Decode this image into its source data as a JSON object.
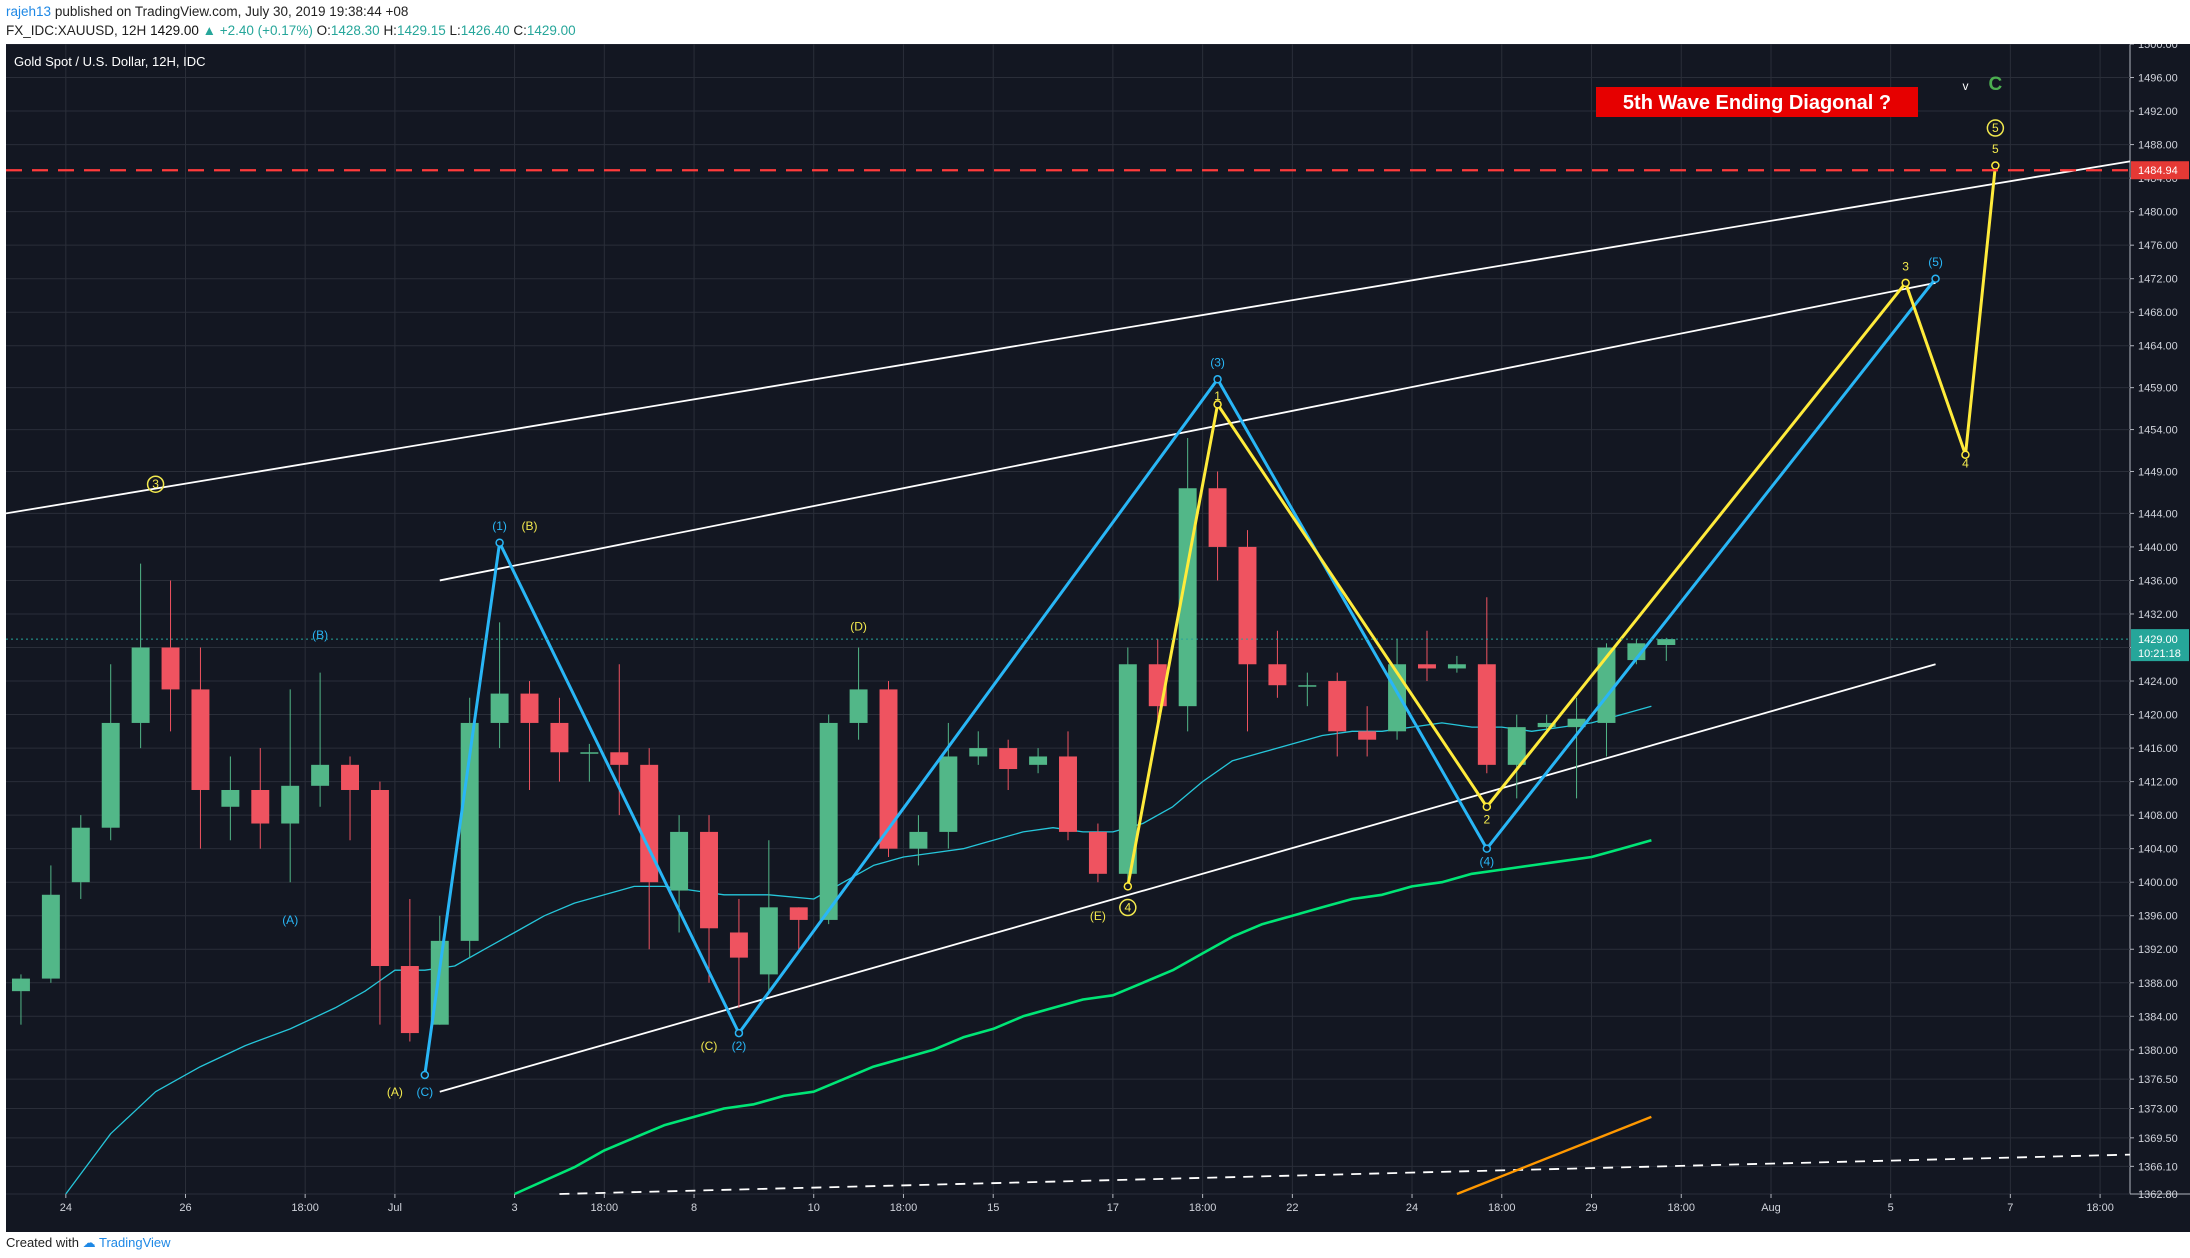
{
  "header": {
    "user": "rajeh13",
    "published": "published on TradingView.com, July 30, 2019 19:38:44 +08",
    "symbol_line": "FX_IDC:XAUUSD, 12H",
    "last": "1429.00",
    "change": "▲ +2.40 (+0.17%)",
    "o_label": "O:",
    "o": "1428.30",
    "h_label": "H:",
    "h": "1429.15",
    "l_label": "L:",
    "l": "1426.40",
    "c_label": "C:",
    "c": "1429.00"
  },
  "footer": {
    "created": "Created with",
    "brand": "TradingView"
  },
  "chart_data": {
    "type": "candlestick",
    "title": "Gold Spot / U.S. Dollar, 12H, IDC",
    "annotation": "5th Wave Ending Diagonal ?",
    "ylim": [
      1362.8,
      1500.0
    ],
    "y_ticks": [
      "1500.00",
      "1496.00",
      "1492.00",
      "1488.00",
      "1484.00",
      "1480.00",
      "1476.00",
      "1472.00",
      "1468.00",
      "1464.00",
      "1459.00",
      "1454.00",
      "1449.00",
      "1444.00",
      "1440.00",
      "1436.00",
      "1432.00",
      "1428.00",
      "1424.00",
      "1420.00",
      "1416.00",
      "1412.00",
      "1408.00",
      "1404.00",
      "1400.00",
      "1396.00",
      "1392.00",
      "1388.00",
      "1384.00",
      "1380.00",
      "1376.50",
      "1373.00",
      "1369.50",
      "1366.10",
      "1362.80"
    ],
    "x_ticks": [
      {
        "i": 1.5,
        "label": "24"
      },
      {
        "i": 5.5,
        "label": "26"
      },
      {
        "i": 9.5,
        "label": "18:00"
      },
      {
        "i": 12.5,
        "label": "Jul"
      },
      {
        "i": 16.5,
        "label": "3"
      },
      {
        "i": 19.5,
        "label": "18:00"
      },
      {
        "i": 22.5,
        "label": "8"
      },
      {
        "i": 26.5,
        "label": "10"
      },
      {
        "i": 29.5,
        "label": "18:00"
      },
      {
        "i": 32.5,
        "label": "15"
      },
      {
        "i": 36.5,
        "label": "17"
      },
      {
        "i": 39.5,
        "label": "18:00"
      },
      {
        "i": 42.5,
        "label": "22"
      },
      {
        "i": 46.5,
        "label": "24"
      },
      {
        "i": 49.5,
        "label": "18:00"
      },
      {
        "i": 52.5,
        "label": "29"
      },
      {
        "i": 55.5,
        "label": "18:00"
      },
      {
        "i": 58.5,
        "label": "Aug"
      },
      {
        "i": 62.5,
        "label": "5"
      },
      {
        "i": 66.5,
        "label": "7"
      },
      {
        "i": 69.5,
        "label": "18:00"
      }
    ],
    "candles": [
      [
        1387,
        1388.5,
        1383,
        1389
      ],
      [
        1388.5,
        1398.5,
        1388,
        1402
      ],
      [
        1400,
        1406.5,
        1398,
        1408
      ],
      [
        1406.5,
        1419,
        1405,
        1426
      ],
      [
        1419,
        1428,
        1416,
        1438
      ],
      [
        1428,
        1423,
        1418,
        1436
      ],
      [
        1423,
        1411,
        1404,
        1428
      ],
      [
        1409,
        1411,
        1405,
        1415
      ],
      [
        1411,
        1407,
        1404,
        1416
      ],
      [
        1407,
        1411.5,
        1400,
        1423
      ],
      [
        1411.5,
        1414,
        1409,
        1425
      ],
      [
        1414,
        1411,
        1405,
        1415
      ],
      [
        1411,
        1390,
        1383,
        1412
      ],
      [
        1390,
        1382,
        1381,
        1398
      ],
      [
        1383,
        1393,
        1383,
        1396
      ],
      [
        1393,
        1419,
        1391,
        1422
      ],
      [
        1419,
        1422.5,
        1416,
        1431
      ],
      [
        1422.5,
        1419,
        1411,
        1424
      ],
      [
        1419,
        1415.5,
        1412,
        1422
      ],
      [
        1415.5,
        1415.5,
        1412,
        1416.5
      ],
      [
        1415.5,
        1414,
        1408,
        1426
      ],
      [
        1414,
        1400,
        1392,
        1416
      ],
      [
        1399,
        1406,
        1394,
        1408
      ],
      [
        1406,
        1394.5,
        1388,
        1408
      ],
      [
        1394,
        1391,
        1385,
        1398
      ],
      [
        1389,
        1397,
        1387,
        1405
      ],
      [
        1397,
        1395.5,
        1392,
        1397
      ],
      [
        1395.5,
        1419,
        1395,
        1420
      ],
      [
        1419,
        1423,
        1417,
        1428
      ],
      [
        1423,
        1404,
        1403,
        1424
      ],
      [
        1404,
        1406,
        1402,
        1408
      ],
      [
        1406,
        1415,
        1404,
        1419
      ],
      [
        1415,
        1416,
        1414,
        1418
      ],
      [
        1416,
        1413.5,
        1411,
        1417
      ],
      [
        1414,
        1415,
        1413,
        1416
      ],
      [
        1415,
        1406,
        1405,
        1418
      ],
      [
        1406,
        1401,
        1400,
        1407
      ],
      [
        1401,
        1426,
        1400,
        1428
      ],
      [
        1426,
        1421,
        1419,
        1429
      ],
      [
        1421,
        1447,
        1418,
        1453
      ],
      [
        1447,
        1440,
        1436,
        1449
      ],
      [
        1440,
        1426,
        1418,
        1442
      ],
      [
        1426,
        1423.5,
        1422,
        1430
      ],
      [
        1423.5,
        1423.5,
        1421,
        1425
      ],
      [
        1424,
        1418,
        1415,
        1425
      ],
      [
        1418,
        1417,
        1415,
        1421
      ],
      [
        1418,
        1426,
        1417,
        1429
      ],
      [
        1426,
        1425.5,
        1424,
        1430
      ],
      [
        1425.5,
        1426,
        1425,
        1427
      ],
      [
        1426,
        1414,
        1413,
        1434
      ],
      [
        1414,
        1418.5,
        1410,
        1420
      ],
      [
        1418.5,
        1419,
        1418,
        1420
      ],
      [
        1418.5,
        1419.5,
        1410,
        1422
      ],
      [
        1419,
        1428,
        1415,
        1428.5
      ],
      [
        1426.5,
        1428.5,
        1426,
        1429
      ],
      [
        1428.3,
        1429,
        1426.4,
        1429.15
      ]
    ],
    "last_price_label": "1429.00",
    "countdown_label": "10:21:18",
    "red_level": 1484.94,
    "red_level_label": "1484.94",
    "wave_labels": [
      {
        "i": 4.5,
        "p": 1447,
        "text": "3",
        "color": "#f2e94e",
        "circled": true
      },
      {
        "i": 10,
        "p": 1429,
        "text": "(B)",
        "color": "#29b6f6"
      },
      {
        "i": 9,
        "p": 1395,
        "text": "(A)",
        "color": "#29b6f6"
      },
      {
        "i": 12.5,
        "p": 1374.5,
        "text": "(A)",
        "color": "#f2e94e"
      },
      {
        "i": 13.5,
        "p": 1374.5,
        "text": "(C)",
        "color": "#29b6f6"
      },
      {
        "i": 16,
        "p": 1442,
        "text": "(1)",
        "color": "#29b6f6"
      },
      {
        "i": 17,
        "p": 1442,
        "text": "(B)",
        "color": "#f2e94e"
      },
      {
        "i": 28,
        "p": 1430,
        "text": "(D)",
        "color": "#f2e94e"
      },
      {
        "i": 23,
        "p": 1380,
        "text": "(C)",
        "color": "#f2e94e"
      },
      {
        "i": 24,
        "p": 1380,
        "text": "(2)",
        "color": "#29b6f6"
      },
      {
        "i": 36,
        "p": 1395.5,
        "text": "(E)",
        "color": "#f2e94e"
      },
      {
        "i": 37,
        "p": 1396.5,
        "text": "4",
        "color": "#f2e94e",
        "circled": true
      },
      {
        "i": 40,
        "p": 1461.5,
        "text": "(3)",
        "color": "#29b6f6"
      },
      {
        "i": 40,
        "p": 1457.5,
        "text": "1",
        "color": "#f2e94e"
      },
      {
        "i": 49,
        "p": 1407,
        "text": "2",
        "color": "#f2e94e"
      },
      {
        "i": 49,
        "p": 1402,
        "text": "(4)",
        "color": "#29b6f6"
      },
      {
        "i": 63,
        "p": 1473,
        "text": "3",
        "color": "#f2e94e"
      },
      {
        "i": 64,
        "p": 1473.5,
        "text": "(5)",
        "color": "#29b6f6"
      },
      {
        "i": 65,
        "p": 1449.5,
        "text": "4",
        "color": "#f2e94e"
      },
      {
        "i": 66,
        "p": 1487,
        "text": "5",
        "color": "#f2e94e"
      },
      {
        "i": 66,
        "p": 1489.5,
        "text": "5",
        "color": "#f2e94e",
        "circled": true
      },
      {
        "i": 65,
        "p": 1494.5,
        "text": "v",
        "color": "#ffffff"
      },
      {
        "i": 66,
        "p": 1494.5,
        "text": "C",
        "color": "#4caf50"
      }
    ],
    "blue_path": [
      [
        13.5,
        1377
      ],
      [
        16,
        1440.5
      ],
      [
        24,
        1382
      ],
      [
        40,
        1460
      ],
      [
        49,
        1404
      ],
      [
        64,
        1472
      ]
    ],
    "yellow_path": [
      [
        37,
        1399.5
      ],
      [
        40,
        1457
      ],
      [
        49,
        1409
      ],
      [
        63,
        1471.5
      ],
      [
        65,
        1451
      ],
      [
        66,
        1485.5
      ]
    ],
    "trendlines": [
      {
        "points": [
          [
            -0.5,
            1444
          ],
          [
            70.5,
            1486
          ]
        ],
        "color": "#ffffff",
        "dash": false
      },
      {
        "points": [
          [
            14,
            1436
          ],
          [
            64,
            1471.5
          ]
        ],
        "color": "#ffffff",
        "dash": false
      },
      {
        "points": [
          [
            14,
            1375
          ],
          [
            64,
            1426
          ]
        ],
        "color": "#ffffff",
        "dash": false
      },
      {
        "points": [
          [
            18,
            1362.8
          ],
          [
            70.5,
            1367.5
          ]
        ],
        "color": "#ffffff",
        "dash": true
      },
      {
        "points": [
          [
            48,
            1362.8
          ],
          [
            54.5,
            1372
          ]
        ],
        "color": "#ff9800",
        "dash": false
      }
    ],
    "ma_cyan": [
      [
        1.5,
        1362.8
      ],
      [
        3,
        1370
      ],
      [
        4.5,
        1375
      ],
      [
        6,
        1378
      ],
      [
        7.5,
        1380.5
      ],
      [
        9,
        1382.5
      ],
      [
        10.5,
        1385
      ],
      [
        11.5,
        1387
      ],
      [
        12.5,
        1389.5
      ],
      [
        13.5,
        1389.5
      ],
      [
        14.5,
        1390
      ],
      [
        15.5,
        1392
      ],
      [
        16.5,
        1394
      ],
      [
        17.5,
        1396
      ],
      [
        18.5,
        1397.5
      ],
      [
        19.5,
        1398.5
      ],
      [
        20.5,
        1399.5
      ],
      [
        21.5,
        1399.5
      ],
      [
        22.5,
        1399
      ],
      [
        23.5,
        1398.5
      ],
      [
        25,
        1398.5
      ],
      [
        26.5,
        1398
      ],
      [
        27.5,
        1400
      ],
      [
        28.5,
        1402
      ],
      [
        29.5,
        1403
      ],
      [
        30.5,
        1403.5
      ],
      [
        31.5,
        1404
      ],
      [
        32.5,
        1405
      ],
      [
        33.5,
        1406
      ],
      [
        34.5,
        1406.5
      ],
      [
        35.5,
        1406
      ],
      [
        36.5,
        1406
      ],
      [
        37.5,
        1407
      ],
      [
        38.5,
        1409
      ],
      [
        39.5,
        1412
      ],
      [
        40.5,
        1414.5
      ],
      [
        41.5,
        1415.5
      ],
      [
        42.5,
        1416.5
      ],
      [
        43.5,
        1417.5
      ],
      [
        44.5,
        1418
      ],
      [
        45.5,
        1418
      ],
      [
        46.5,
        1418.5
      ],
      [
        47.5,
        1419
      ],
      [
        48.5,
        1418.5
      ],
      [
        49.5,
        1418.5
      ],
      [
        50.5,
        1418
      ],
      [
        51.5,
        1418.5
      ],
      [
        52.5,
        1419
      ],
      [
        53.5,
        1420
      ],
      [
        54.5,
        1421
      ]
    ],
    "ma_green": [
      [
        16.5,
        1362.8
      ],
      [
        18.5,
        1366
      ],
      [
        19.5,
        1368
      ],
      [
        20.5,
        1369.5
      ],
      [
        21.5,
        1371
      ],
      [
        22.5,
        1372
      ],
      [
        23.5,
        1373
      ],
      [
        24.5,
        1373.5
      ],
      [
        25.5,
        1374.5
      ],
      [
        26.5,
        1375
      ],
      [
        27.5,
        1376.5
      ],
      [
        28.5,
        1378
      ],
      [
        29.5,
        1379
      ],
      [
        30.5,
        1380
      ],
      [
        31.5,
        1381.5
      ],
      [
        32.5,
        1382.5
      ],
      [
        33.5,
        1384
      ],
      [
        34.5,
        1385
      ],
      [
        35.5,
        1386
      ],
      [
        36.5,
        1386.5
      ],
      [
        37.5,
        1388
      ],
      [
        38.5,
        1389.5
      ],
      [
        39.5,
        1391.5
      ],
      [
        40.5,
        1393.5
      ],
      [
        41.5,
        1395
      ],
      [
        42.5,
        1396
      ],
      [
        43.5,
        1397
      ],
      [
        44.5,
        1398
      ],
      [
        45.5,
        1398.5
      ],
      [
        46.5,
        1399.5
      ],
      [
        47.5,
        1400
      ],
      [
        48.5,
        1401
      ],
      [
        49.5,
        1401.5
      ],
      [
        50.5,
        1402
      ],
      [
        51.5,
        1402.5
      ],
      [
        52.5,
        1403
      ],
      [
        53.5,
        1404
      ],
      [
        54.5,
        1405
      ]
    ]
  }
}
